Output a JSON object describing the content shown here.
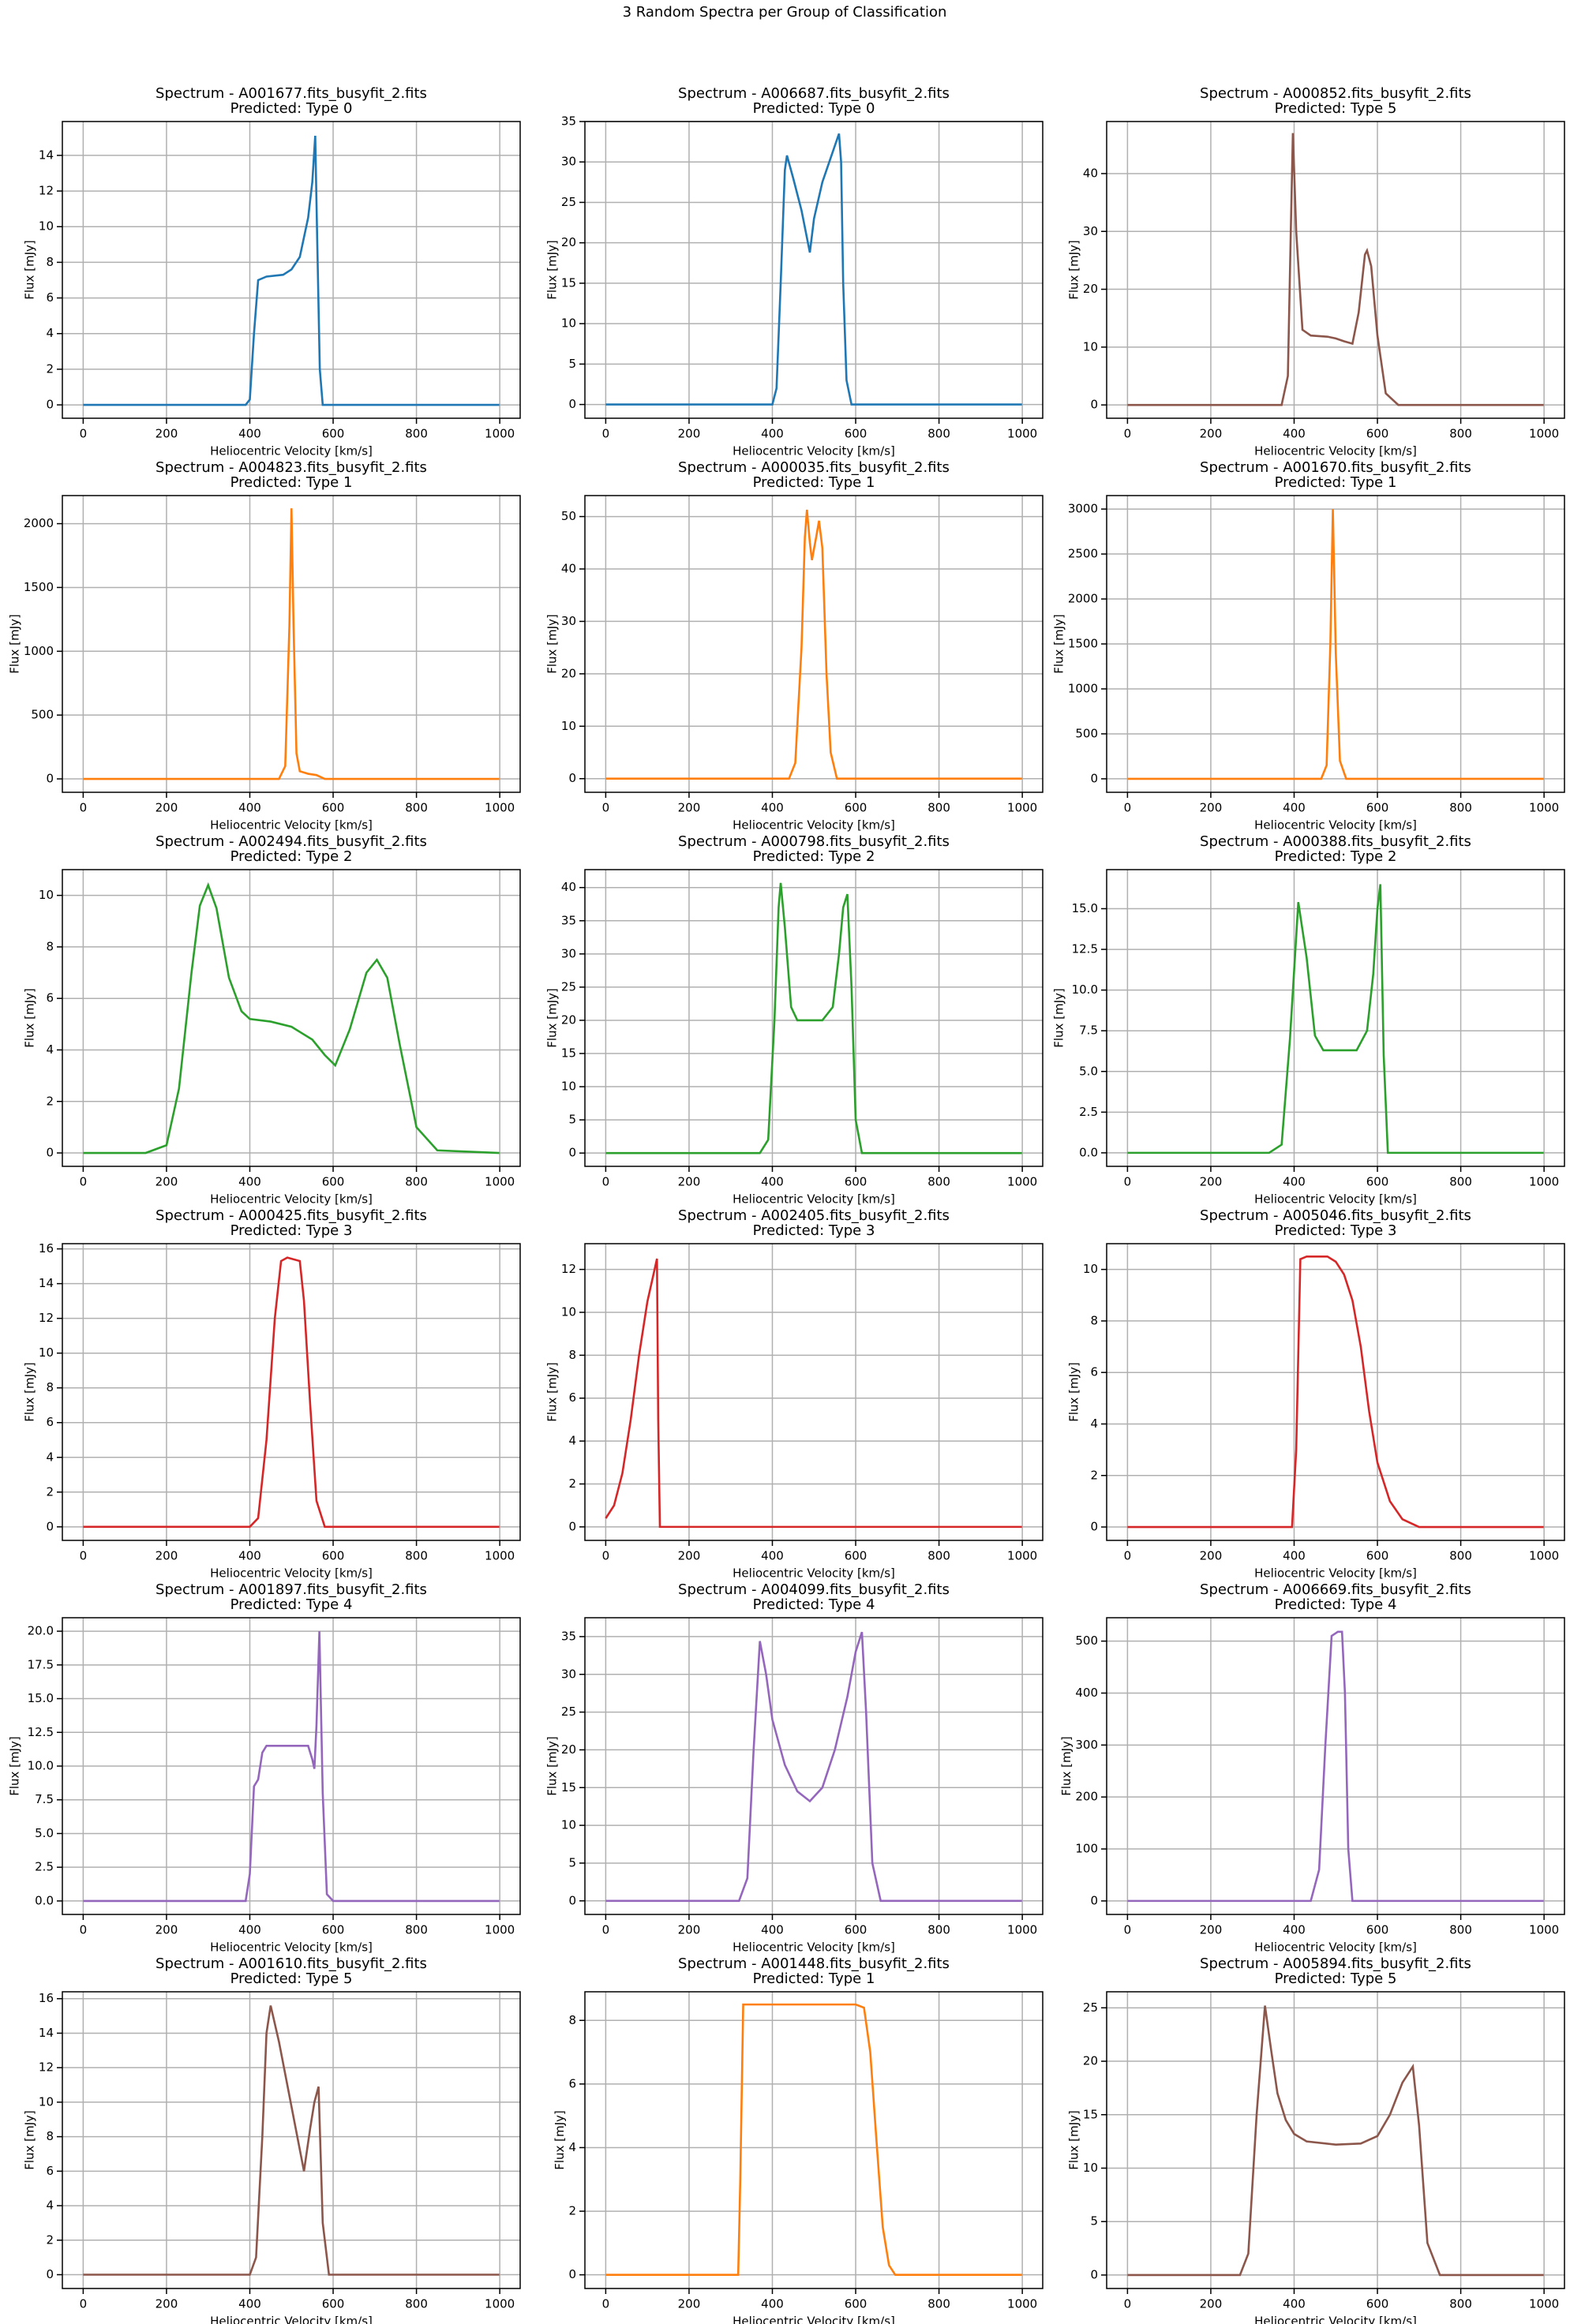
{
  "title": "3 Random Spectra per Group of Classification",
  "chart_data": [
    {
      "type": "line",
      "title": "Spectrum - A001677.fits_busyfit_2.fits",
      "subtitle": "Predicted: Type 0",
      "xlabel": "Heliocentric Velocity [km/s]",
      "ylabel": "Flux [mJy]",
      "color": "#1f77b4",
      "grid": true,
      "xlim": [
        -50,
        1049
      ],
      "xticks": [
        0,
        200,
        400,
        600,
        800,
        1000
      ],
      "ylim": [
        -0.75,
        15.9
      ],
      "yticks": [
        0,
        2,
        4,
        6,
        8,
        10,
        12,
        14
      ],
      "x": [
        0,
        390,
        400,
        410,
        420,
        440,
        480,
        500,
        520,
        540,
        550,
        557,
        562,
        568,
        575,
        600,
        999
      ],
      "values": [
        0,
        0,
        0.3,
        4,
        7,
        7.2,
        7.3,
        7.6,
        8.3,
        10.5,
        12.5,
        15.1,
        9,
        2,
        0,
        0,
        0
      ]
    },
    {
      "type": "line",
      "title": "Spectrum - A006687.fits_busyfit_2.fits",
      "subtitle": "Predicted: Type 0",
      "xlabel": "Heliocentric Velocity [km/s]",
      "ylabel": "Flux [mJy]",
      "color": "#1f77b4",
      "grid": true,
      "xlim": [
        -50,
        1049
      ],
      "xticks": [
        0,
        200,
        400,
        600,
        800,
        1000
      ],
      "ylim": [
        -1.7,
        35
      ],
      "yticks": [
        0,
        5,
        10,
        15,
        20,
        25,
        30,
        35
      ],
      "x": [
        0,
        400,
        410,
        420,
        430,
        435,
        450,
        470,
        490,
        500,
        520,
        540,
        560,
        565,
        570,
        578,
        590,
        999
      ],
      "values": [
        0,
        0,
        2,
        15,
        29,
        30.8,
        28,
        24,
        18.8,
        23,
        27.5,
        30.5,
        33.5,
        30,
        15,
        3,
        0,
        0
      ]
    },
    {
      "type": "line",
      "title": "Spectrum - A000852.fits_busyfit_2.fits",
      "subtitle": "Predicted: Type 5",
      "xlabel": "Heliocentric Velocity [km/s]",
      "ylabel": "Flux [mJy]",
      "color": "#8c564b",
      "grid": true,
      "xlim": [
        -50,
        1049
      ],
      "xticks": [
        0,
        200,
        400,
        600,
        800,
        1000
      ],
      "ylim": [
        -2.3,
        49
      ],
      "yticks": [
        0,
        10,
        20,
        30,
        40
      ],
      "x": [
        0,
        370,
        385,
        392,
        397,
        405,
        420,
        440,
        480,
        500,
        520,
        540,
        555,
        570,
        575,
        585,
        600,
        620,
        650,
        999
      ],
      "values": [
        0,
        0,
        5,
        30,
        47,
        30,
        13,
        12,
        11.8,
        11.5,
        11,
        10.6,
        16,
        26,
        26.7,
        24,
        12,
        2,
        0,
        0
      ]
    },
    {
      "type": "line",
      "title": "Spectrum - A004823.fits_busyfit_2.fits",
      "subtitle": "Predicted: Type 1",
      "xlabel": "Heliocentric Velocity [km/s]",
      "ylabel": "Flux [mJy]",
      "color": "#ff7f0e",
      "grid": true,
      "xlim": [
        -50,
        1049
      ],
      "xticks": [
        0,
        200,
        400,
        600,
        800,
        1000
      ],
      "ylim": [
        -105,
        2220
      ],
      "yticks": [
        0,
        500,
        1000,
        1500,
        2000
      ],
      "x": [
        0,
        470,
        485,
        495,
        500,
        505,
        512,
        520,
        540,
        560,
        580,
        600,
        999
      ],
      "values": [
        0,
        0,
        100,
        1200,
        2120,
        1200,
        200,
        60,
        40,
        30,
        0,
        0,
        0
      ]
    },
    {
      "type": "line",
      "title": "Spectrum - A000035.fits_busyfit_2.fits",
      "subtitle": "Predicted: Type 1",
      "xlabel": "Heliocentric Velocity [km/s]",
      "ylabel": "Flux [mJy]",
      "color": "#ff7f0e",
      "grid": true,
      "xlim": [
        -50,
        1049
      ],
      "xticks": [
        0,
        200,
        400,
        600,
        800,
        1000
      ],
      "ylim": [
        -2.6,
        54
      ],
      "yticks": [
        0,
        10,
        20,
        30,
        40,
        50
      ],
      "x": [
        0,
        440,
        455,
        470,
        478,
        483,
        490,
        495,
        505,
        512,
        520,
        530,
        540,
        555,
        999
      ],
      "values": [
        0,
        0,
        3,
        25,
        46,
        51.3,
        45,
        41.7,
        46,
        49.2,
        44,
        20,
        5,
        0,
        0
      ]
    },
    {
      "type": "line",
      "title": "Spectrum - A001670.fits_busyfit_2.fits",
      "subtitle": "Predicted: Type 1",
      "xlabel": "Heliocentric Velocity [km/s]",
      "ylabel": "Flux [mJy]",
      "color": "#ff7f0e",
      "grid": true,
      "xlim": [
        -50,
        1049
      ],
      "xticks": [
        0,
        200,
        400,
        600,
        800,
        1000
      ],
      "ylim": [
        -150,
        3150
      ],
      "yticks": [
        0,
        500,
        1000,
        1500,
        2000,
        2500,
        3000
      ],
      "x": [
        0,
        465,
        478,
        487,
        493,
        500,
        510,
        525,
        999
      ],
      "values": [
        0,
        0,
        150,
        1500,
        3000,
        1400,
        200,
        0,
        0
      ]
    },
    {
      "type": "line",
      "title": "Spectrum - A002494.fits_busyfit_2.fits",
      "subtitle": "Predicted: Type 2",
      "xlabel": "Heliocentric Velocity [km/s]",
      "ylabel": "Flux [mJy]",
      "color": "#2ca02c",
      "grid": true,
      "xlim": [
        -50,
        1049
      ],
      "xticks": [
        0,
        200,
        400,
        600,
        800,
        1000
      ],
      "ylim": [
        -0.52,
        11
      ],
      "yticks": [
        0,
        2,
        4,
        6,
        8,
        10
      ],
      "x": [
        0,
        150,
        200,
        230,
        260,
        280,
        300,
        320,
        350,
        380,
        400,
        450,
        500,
        550,
        580,
        605,
        640,
        680,
        705,
        730,
        760,
        800,
        850,
        999
      ],
      "values": [
        0,
        0,
        0.3,
        2.5,
        7,
        9.6,
        10.4,
        9.5,
        6.8,
        5.5,
        5.2,
        5.1,
        4.9,
        4.4,
        3.8,
        3.4,
        4.8,
        7,
        7.5,
        6.8,
        4.2,
        1,
        0.1,
        0
      ]
    },
    {
      "type": "line",
      "title": "Spectrum - A000798.fits_busyfit_2.fits",
      "subtitle": "Predicted: Type 2",
      "xlabel": "Heliocentric Velocity [km/s]",
      "ylabel": "Flux [mJy]",
      "color": "#2ca02c",
      "grid": true,
      "xlim": [
        -50,
        1049
      ],
      "xticks": [
        0,
        200,
        400,
        600,
        800,
        1000
      ],
      "ylim": [
        -2,
        42.7
      ],
      "yticks": [
        0,
        5,
        10,
        15,
        20,
        25,
        30,
        35,
        40
      ],
      "x": [
        0,
        370,
        390,
        405,
        415,
        420,
        430,
        445,
        460,
        520,
        545,
        560,
        570,
        580,
        590,
        600,
        615,
        999
      ],
      "values": [
        0,
        0,
        2,
        20,
        37,
        40.7,
        34,
        22,
        20,
        20,
        22,
        30,
        37,
        39,
        25,
        5,
        0,
        0
      ]
    },
    {
      "type": "line",
      "title": "Spectrum - A000388.fits_busyfit_2.fits",
      "subtitle": "Predicted: Type 2",
      "xlabel": "Heliocentric Velocity [km/s]",
      "ylabel": "Flux [mJy]",
      "color": "#2ca02c",
      "grid": true,
      "xlim": [
        -50,
        1049
      ],
      "xticks": [
        0,
        200,
        400,
        600,
        800,
        1000
      ],
      "ylim": [
        -0.83,
        17.4
      ],
      "yticks": [
        {
          "value": 0,
          "label": "0.0"
        },
        2.5,
        {
          "value": 5,
          "label": "5.0"
        },
        7.5,
        {
          "value": 10,
          "label": "10.0"
        },
        12.5,
        {
          "value": 15,
          "label": "15.0"
        }
      ],
      "x": [
        0,
        340,
        370,
        390,
        410,
        430,
        450,
        470,
        550,
        575,
        590,
        600,
        607,
        615,
        625,
        999
      ],
      "values": [
        0,
        0,
        0.5,
        7,
        15.4,
        12,
        7.2,
        6.3,
        6.3,
        7.5,
        11,
        15,
        16.5,
        6,
        0,
        0
      ]
    },
    {
      "type": "line",
      "title": "Spectrum - A000425.fits_busyfit_2.fits",
      "subtitle": "Predicted: Type 3",
      "xlabel": "Heliocentric Velocity [km/s]",
      "ylabel": "Flux [mJy]",
      "color": "#d62728",
      "grid": true,
      "xlim": [
        -50,
        1049
      ],
      "xticks": [
        0,
        200,
        400,
        600,
        800,
        1000
      ],
      "ylim": [
        -0.78,
        16.3
      ],
      "yticks": [
        0,
        2,
        4,
        6,
        8,
        10,
        12,
        14,
        16
      ],
      "x": [
        0,
        400,
        420,
        440,
        460,
        475,
        490,
        520,
        530,
        545,
        560,
        580,
        999
      ],
      "values": [
        0,
        0,
        0.5,
        5,
        12,
        15.3,
        15.5,
        15.3,
        13,
        7,
        1.5,
        0,
        0
      ]
    },
    {
      "type": "line",
      "title": "Spectrum - A002405.fits_busyfit_2.fits",
      "subtitle": "Predicted: Type 3",
      "xlabel": "Heliocentric Velocity [km/s]",
      "ylabel": "Flux [mJy]",
      "color": "#d62728",
      "grid": true,
      "xlim": [
        -50,
        1049
      ],
      "xticks": [
        0,
        200,
        400,
        600,
        800,
        1000
      ],
      "ylim": [
        -0.63,
        13.2
      ],
      "yticks": [
        0,
        2,
        4,
        6,
        8,
        10,
        12
      ],
      "x": [
        0,
        20,
        40,
        60,
        80,
        100,
        115,
        123,
        126,
        130,
        999
      ],
      "values": [
        0.4,
        1,
        2.5,
        5,
        8,
        10.5,
        11.8,
        12.5,
        5,
        0,
        0
      ]
    },
    {
      "type": "line",
      "title": "Spectrum - A005046.fits_busyfit_2.fits",
      "subtitle": "Predicted: Type 3",
      "xlabel": "Heliocentric Velocity [km/s]",
      "ylabel": "Flux [mJy]",
      "color": "#d62728",
      "grid": true,
      "xlim": [
        -50,
        1049
      ],
      "xticks": [
        0,
        200,
        400,
        600,
        800,
        1000
      ],
      "ylim": [
        -0.52,
        11
      ],
      "yticks": [
        0,
        2,
        4,
        6,
        8,
        10
      ],
      "x": [
        0,
        395,
        405,
        415,
        430,
        480,
        500,
        520,
        540,
        560,
        580,
        600,
        630,
        660,
        700,
        999
      ],
      "values": [
        0,
        0,
        3,
        10.4,
        10.5,
        10.5,
        10.3,
        9.8,
        8.8,
        7,
        4.5,
        2.5,
        1,
        0.3,
        0,
        0
      ]
    },
    {
      "type": "line",
      "title": "Spectrum - A001897.fits_busyfit_2.fits",
      "subtitle": "Predicted: Type 4",
      "xlabel": "Heliocentric Velocity [km/s]",
      "ylabel": "Flux [mJy]",
      "color": "#9467bd",
      "grid": true,
      "xlim": [
        -50,
        1049
      ],
      "xticks": [
        0,
        200,
        400,
        600,
        800,
        1000
      ],
      "ylim": [
        -1,
        21
      ],
      "yticks": [
        {
          "value": 0,
          "label": "0.0"
        },
        2.5,
        {
          "value": 5,
          "label": "5.0"
        },
        7.5,
        {
          "value": 10,
          "label": "10.0"
        },
        12.5,
        {
          "value": 15,
          "label": "15.0"
        },
        17.5,
        {
          "value": 20,
          "label": "20.0"
        }
      ],
      "x": [
        0,
        390,
        400,
        410,
        420,
        430,
        440,
        460,
        540,
        550,
        555,
        560,
        567,
        575,
        585,
        600,
        999
      ],
      "values": [
        0,
        0,
        2,
        8.5,
        9,
        11,
        11.5,
        11.5,
        11.5,
        10.5,
        9.8,
        13,
        20,
        8,
        0.5,
        0,
        0
      ]
    },
    {
      "type": "line",
      "title": "Spectrum - A004099.fits_busyfit_2.fits",
      "subtitle": "Predicted: Type 4",
      "xlabel": "Heliocentric Velocity [km/s]",
      "ylabel": "Flux [mJy]",
      "color": "#9467bd",
      "grid": true,
      "xlim": [
        -50,
        1049
      ],
      "xticks": [
        0,
        200,
        400,
        600,
        800,
        1000
      ],
      "ylim": [
        -1.8,
        37.5
      ],
      "yticks": [
        0,
        5,
        10,
        15,
        20,
        25,
        30,
        35
      ],
      "x": [
        0,
        320,
        340,
        355,
        370,
        385,
        400,
        430,
        460,
        490,
        520,
        550,
        580,
        600,
        615,
        625,
        640,
        660,
        999
      ],
      "values": [
        0,
        0,
        3,
        20,
        34.4,
        30,
        24,
        18,
        14.5,
        13.2,
        15,
        20,
        27,
        33,
        35.6,
        25,
        5,
        0,
        0
      ]
    },
    {
      "type": "line",
      "title": "Spectrum - A006669.fits_busyfit_2.fits",
      "subtitle": "Predicted: Type 4",
      "xlabel": "Heliocentric Velocity [km/s]",
      "ylabel": "Flux [mJy]",
      "color": "#9467bd",
      "grid": true,
      "xlim": [
        -50,
        1049
      ],
      "xticks": [
        0,
        200,
        400,
        600,
        800,
        1000
      ],
      "ylim": [
        -26,
        545
      ],
      "yticks": [
        0,
        100,
        200,
        300,
        400,
        500
      ],
      "x": [
        0,
        440,
        460,
        475,
        490,
        505,
        515,
        522,
        530,
        540,
        999
      ],
      "values": [
        0,
        0,
        60,
        300,
        510,
        518,
        518,
        400,
        100,
        0,
        0
      ]
    },
    {
      "type": "line",
      "title": "Spectrum - A001610.fits_busyfit_2.fits",
      "subtitle": "Predicted: Type 5",
      "xlabel": "Heliocentric Velocity [km/s]",
      "ylabel": "Flux [mJy]",
      "color": "#8c564b",
      "grid": true,
      "xlim": [
        -50,
        1049
      ],
      "xticks": [
        0,
        200,
        400,
        600,
        800,
        1000
      ],
      "ylim": [
        -0.8,
        16.4
      ],
      "yticks": [
        0,
        2,
        4,
        6,
        8,
        10,
        12,
        14,
        16
      ],
      "x": [
        0,
        400,
        415,
        430,
        440,
        450,
        470,
        490,
        510,
        530,
        545,
        555,
        565,
        575,
        590,
        999
      ],
      "values": [
        0,
        0,
        1,
        8,
        14,
        15.6,
        13.5,
        11,
        8.5,
        6,
        8.5,
        10,
        10.9,
        3,
        0,
        0
      ]
    },
    {
      "type": "line",
      "title": "Spectrum - A001448.fits_busyfit_2.fits",
      "subtitle": "Predicted: Type 1",
      "xlabel": "Heliocentric Velocity [km/s]",
      "ylabel": "Flux [mJy]",
      "color": "#ff7f0e",
      "grid": true,
      "xlim": [
        -50,
        1049
      ],
      "xticks": [
        0,
        200,
        400,
        600,
        800,
        1000
      ],
      "ylim": [
        -0.43,
        8.9
      ],
      "yticks": [
        0,
        2,
        4,
        6,
        8
      ],
      "x": [
        0,
        318,
        323,
        330,
        600,
        620,
        635,
        650,
        665,
        680,
        695,
        999
      ],
      "values": [
        0,
        0,
        3,
        8.5,
        8.5,
        8.4,
        7,
        4.2,
        1.5,
        0.3,
        0,
        0
      ]
    },
    {
      "type": "line",
      "title": "Spectrum - A005894.fits_busyfit_2.fits",
      "subtitle": "Predicted: Type 5",
      "xlabel": "Heliocentric Velocity [km/s]",
      "ylabel": "Flux [mJy]",
      "color": "#8c564b",
      "grid": true,
      "xlim": [
        -50,
        1049
      ],
      "xticks": [
        0,
        200,
        400,
        600,
        800,
        1000
      ],
      "ylim": [
        -1.26,
        26.5
      ],
      "yticks": [
        0,
        5,
        10,
        15,
        20,
        25
      ],
      "x": [
        0,
        270,
        290,
        310,
        330,
        345,
        360,
        380,
        400,
        430,
        500,
        560,
        600,
        630,
        660,
        685,
        700,
        720,
        750,
        999
      ],
      "values": [
        0,
        0,
        2,
        15,
        25.2,
        21,
        17,
        14.5,
        13.2,
        12.5,
        12.2,
        12.3,
        13,
        15,
        18,
        19.5,
        14,
        3,
        0,
        0
      ]
    }
  ]
}
